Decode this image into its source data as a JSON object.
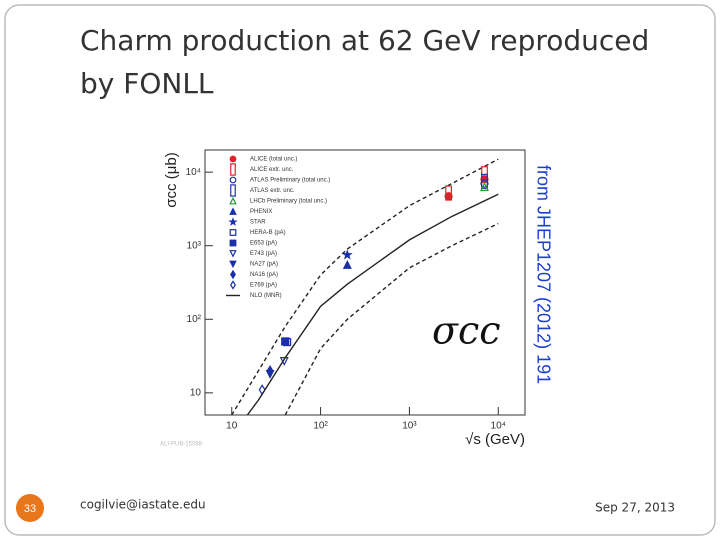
{
  "slide": {
    "title_lines": [
      "Charm production at 62 GeV reproduced",
      "by FONLL"
    ],
    "number": "33",
    "email": "cogilvie@iastate.edu",
    "date": "Sep 27, 2013"
  },
  "chart_data": {
    "type": "scatter",
    "log_x": true,
    "log_y": true,
    "x_label": "√s (GeV)",
    "y_label": "σcc (μb)",
    "watermark": "ALI-PUB-15089",
    "source": "from JHEP1207 (2012) 191",
    "symbol": "σcc",
    "xlim": [
      5,
      20000
    ],
    "ylim": [
      5,
      20000
    ],
    "xticks": [
      10,
      {
        "value": 100,
        "label": "10²"
      },
      {
        "value": 1000,
        "label": "10³"
      },
      {
        "value": 10000,
        "label": "10⁴"
      }
    ],
    "yticks": [
      10,
      {
        "value": 100,
        "label": "10²"
      },
      {
        "value": 1000,
        "label": "10³"
      },
      {
        "value": 10000,
        "label": "10⁴"
      }
    ],
    "series": [
      {
        "name": "ALICE (total unc.)",
        "color": "#e0202a",
        "marker": "circle",
        "x": [
          2760,
          7000
        ],
        "values": [
          4700,
          8000
        ]
      },
      {
        "name": "ALICE extr. unc.",
        "color": "#e0202a",
        "marker": "box",
        "x": [
          2760,
          7000
        ],
        "values": [
          5200,
          9500
        ]
      },
      {
        "name": "ATLAS Preliminary (total unc.)",
        "color": "#2233aa",
        "marker": "circle-open",
        "x": [
          7000
        ],
        "values": [
          7000
        ]
      },
      {
        "name": "ATLAS extr. unc.",
        "color": "#2233aa",
        "marker": "box",
        "x": [
          7000
        ],
        "values": [
          7500
        ]
      },
      {
        "name": "LHCb Preliminary (total unc.)",
        "color": "#20a030",
        "marker": "triangle-open",
        "x": [
          7000
        ],
        "values": [
          6300
        ]
      },
      {
        "name": "PHENIX",
        "color": "#1a2fa8",
        "marker": "triangle",
        "x": [
          200
        ],
        "values": [
          550
        ]
      },
      {
        "name": "STAR",
        "color": "#1a2fa8",
        "marker": "star",
        "x": [
          200
        ],
        "values": [
          750
        ]
      },
      {
        "name": "HERA-B (pA)",
        "color": "#1a2fa8",
        "marker": "square-open",
        "x": [
          42
        ],
        "values": [
          49
        ]
      },
      {
        "name": "E653 (pA)",
        "color": "#1a2fa8",
        "marker": "square",
        "x": [
          40
        ],
        "values": [
          50
        ]
      },
      {
        "name": "E743 (pA)",
        "color": "#1a2fa8",
        "marker": "triangle-down-open",
        "x": [
          39
        ],
        "values": [
          27
        ]
      },
      {
        "name": "NA27 (pA)",
        "color": "#1a2fa8",
        "marker": "triangle-down",
        "x": [
          27
        ],
        "values": [
          18
        ]
      },
      {
        "name": "NA16 (pA)",
        "color": "#1a2fa8",
        "marker": "diamond",
        "x": [
          27
        ],
        "values": [
          20
        ]
      },
      {
        "name": "E769 (pA)",
        "color": "#1a2fa8",
        "marker": "diamond-open",
        "x": [
          22
        ],
        "values": [
          11
        ]
      },
      {
        "name": "NLO (MNR)",
        "color": "#222222",
        "marker": "line",
        "x": [
          15,
          20,
          40,
          100,
          200,
          1000,
          3000,
          10000
        ],
        "values": [
          5,
          8,
          30,
          150,
          300,
          1200,
          2500,
          5000
        ]
      }
    ],
    "bands": [
      {
        "color": "#222222",
        "dash": true,
        "x": [
          10,
          20,
          40,
          100,
          200,
          1000,
          10000
        ],
        "values": [
          5,
          20,
          80,
          400,
          900,
          3500,
          15000
        ]
      },
      {
        "color": "#222222",
        "dash": true,
        "x": [
          40,
          100,
          200,
          1000,
          3000,
          10000
        ],
        "values": [
          5,
          40,
          100,
          500,
          1000,
          2000
        ]
      }
    ]
  }
}
